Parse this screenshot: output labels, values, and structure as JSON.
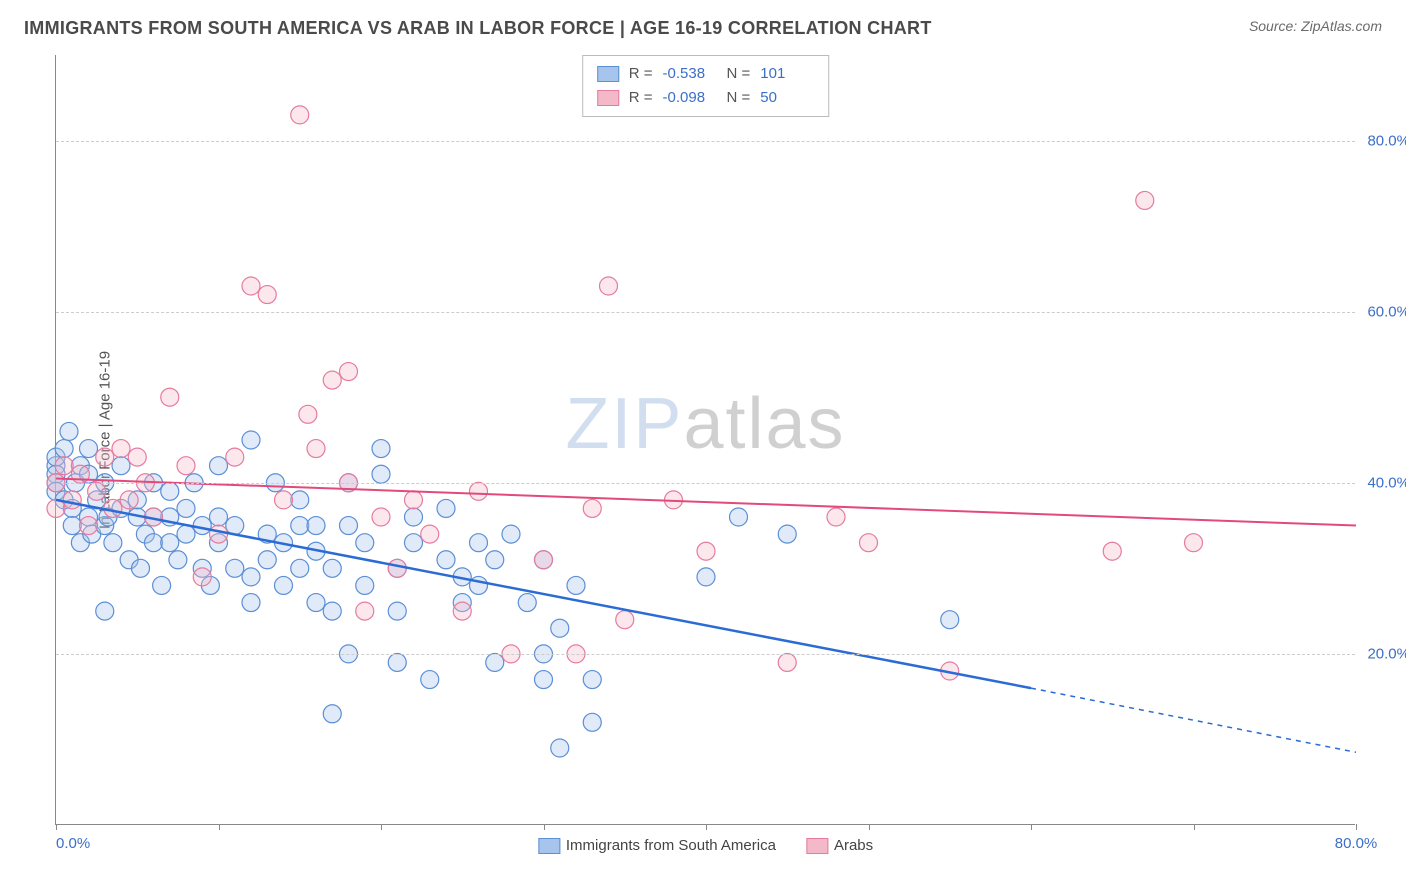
{
  "title": "IMMIGRANTS FROM SOUTH AMERICA VS ARAB IN LABOR FORCE | AGE 16-19 CORRELATION CHART",
  "source": "Source: ZipAtlas.com",
  "ylabel": "In Labor Force | Age 16-19",
  "watermark": {
    "zip": "ZIP",
    "atlas": "atlas"
  },
  "chart": {
    "type": "scatter",
    "xlim": [
      0,
      80
    ],
    "ylim": [
      0,
      90
    ],
    "xtick_positions": [
      0,
      10,
      20,
      30,
      40,
      50,
      60,
      70,
      80
    ],
    "xtick_labels_shown": {
      "0": "0.0%",
      "80": "80.0%"
    },
    "ytick_positions": [
      20,
      40,
      60,
      80
    ],
    "ytick_labels": [
      "20.0%",
      "40.0%",
      "60.0%",
      "80.0%"
    ],
    "background_color": "#ffffff",
    "grid_color": "#cccccc",
    "grid_dash": "4,4",
    "marker_radius": 9,
    "marker_stroke_width": 1.2,
    "marker_fill_opacity": 0.35,
    "series": [
      {
        "name": "Immigrants from South America",
        "marker_fill": "#a7c4ec",
        "marker_stroke": "#5b8fd6",
        "line_color": "#2a6bd4",
        "line_width": 2.5,
        "R": "-0.538",
        "N": "101",
        "regression": {
          "x1": 0,
          "y1": 38,
          "x2": 60,
          "y2": 16,
          "x3": 80,
          "y3": 8.5,
          "dash_start_x": 60
        },
        "points": [
          [
            0,
            42
          ],
          [
            0,
            41
          ],
          [
            0,
            40
          ],
          [
            0,
            39
          ],
          [
            0,
            43
          ],
          [
            0.5,
            44
          ],
          [
            0.5,
            38
          ],
          [
            0.8,
            46
          ],
          [
            1,
            37
          ],
          [
            1,
            35
          ],
          [
            1.2,
            40
          ],
          [
            1.5,
            33
          ],
          [
            1.5,
            42
          ],
          [
            2,
            36
          ],
          [
            2,
            41
          ],
          [
            2,
            44
          ],
          [
            2.2,
            34
          ],
          [
            2.5,
            38
          ],
          [
            3,
            25
          ],
          [
            3,
            40
          ],
          [
            3,
            35
          ],
          [
            3.2,
            36
          ],
          [
            3.5,
            33
          ],
          [
            4,
            37
          ],
          [
            4,
            42
          ],
          [
            4.5,
            31
          ],
          [
            5,
            36
          ],
          [
            5,
            38
          ],
          [
            5.2,
            30
          ],
          [
            5.5,
            34
          ],
          [
            6,
            40
          ],
          [
            6,
            33
          ],
          [
            6,
            36
          ],
          [
            6.5,
            28
          ],
          [
            7,
            33
          ],
          [
            7,
            36
          ],
          [
            7,
            39
          ],
          [
            7.5,
            31
          ],
          [
            8,
            34
          ],
          [
            8,
            37
          ],
          [
            8.5,
            40
          ],
          [
            9,
            30
          ],
          [
            9,
            35
          ],
          [
            9.5,
            28
          ],
          [
            10,
            42
          ],
          [
            10,
            36
          ],
          [
            10,
            33
          ],
          [
            11,
            30
          ],
          [
            11,
            35
          ],
          [
            12,
            29
          ],
          [
            12,
            45
          ],
          [
            12,
            26
          ],
          [
            13,
            34
          ],
          [
            13,
            31
          ],
          [
            13.5,
            40
          ],
          [
            14,
            28
          ],
          [
            14,
            33
          ],
          [
            15,
            30
          ],
          [
            15,
            35
          ],
          [
            15,
            38
          ],
          [
            16,
            26
          ],
          [
            16,
            32
          ],
          [
            16,
            35
          ],
          [
            17,
            25
          ],
          [
            17,
            30
          ],
          [
            17,
            13
          ],
          [
            18,
            20
          ],
          [
            18,
            35
          ],
          [
            18,
            40
          ],
          [
            19,
            28
          ],
          [
            19,
            33
          ],
          [
            20,
            41
          ],
          [
            20,
            44
          ],
          [
            21,
            30
          ],
          [
            21,
            19
          ],
          [
            21,
            25
          ],
          [
            22,
            33
          ],
          [
            22,
            36
          ],
          [
            23,
            17
          ],
          [
            24,
            31
          ],
          [
            24,
            37
          ],
          [
            25,
            26
          ],
          [
            25,
            29
          ],
          [
            26,
            33
          ],
          [
            26,
            28
          ],
          [
            27,
            19
          ],
          [
            27,
            31
          ],
          [
            28,
            34
          ],
          [
            29,
            26
          ],
          [
            30,
            17
          ],
          [
            30,
            20
          ],
          [
            30,
            31
          ],
          [
            31,
            23
          ],
          [
            31,
            9
          ],
          [
            32,
            28
          ],
          [
            33,
            17
          ],
          [
            33,
            12
          ],
          [
            40,
            29
          ],
          [
            42,
            36
          ],
          [
            45,
            34
          ],
          [
            55,
            24
          ]
        ]
      },
      {
        "name": "Arabs",
        "marker_fill": "#f3b9c9",
        "marker_stroke": "#e67ba0",
        "line_color": "#e24a7b",
        "line_width": 2,
        "R": "-0.098",
        "N": "50",
        "regression": {
          "x1": 0,
          "y1": 40.5,
          "x2": 80,
          "y2": 35
        },
        "points": [
          [
            0,
            37
          ],
          [
            0,
            40
          ],
          [
            0.5,
            42
          ],
          [
            1,
            38
          ],
          [
            1.5,
            41
          ],
          [
            2,
            35
          ],
          [
            2.5,
            39
          ],
          [
            3,
            43
          ],
          [
            3.5,
            37
          ],
          [
            4,
            44
          ],
          [
            4.5,
            38
          ],
          [
            5,
            43
          ],
          [
            5.5,
            40
          ],
          [
            6,
            36
          ],
          [
            7,
            50
          ],
          [
            8,
            42
          ],
          [
            9,
            29
          ],
          [
            10,
            34
          ],
          [
            11,
            43
          ],
          [
            12,
            63
          ],
          [
            13,
            62
          ],
          [
            14,
            38
          ],
          [
            15,
            83
          ],
          [
            15.5,
            48
          ],
          [
            16,
            44
          ],
          [
            17,
            52
          ],
          [
            18,
            40
          ],
          [
            18,
            53
          ],
          [
            19,
            25
          ],
          [
            20,
            36
          ],
          [
            21,
            30
          ],
          [
            22,
            38
          ],
          [
            23,
            34
          ],
          [
            25,
            25
          ],
          [
            26,
            39
          ],
          [
            28,
            20
          ],
          [
            30,
            31
          ],
          [
            32,
            20
          ],
          [
            33,
            37
          ],
          [
            34,
            63
          ],
          [
            35,
            24
          ],
          [
            38,
            38
          ],
          [
            40,
            32
          ],
          [
            45,
            19
          ],
          [
            48,
            36
          ],
          [
            50,
            33
          ],
          [
            55,
            18
          ],
          [
            65,
            32
          ],
          [
            67,
            73
          ],
          [
            70,
            33
          ]
        ]
      }
    ]
  },
  "legend_bottom": [
    {
      "label": "Immigrants from South America",
      "fill": "#a7c4ec",
      "stroke": "#5b8fd6"
    },
    {
      "label": "Arabs",
      "fill": "#f3b9c9",
      "stroke": "#e67ba0"
    }
  ]
}
